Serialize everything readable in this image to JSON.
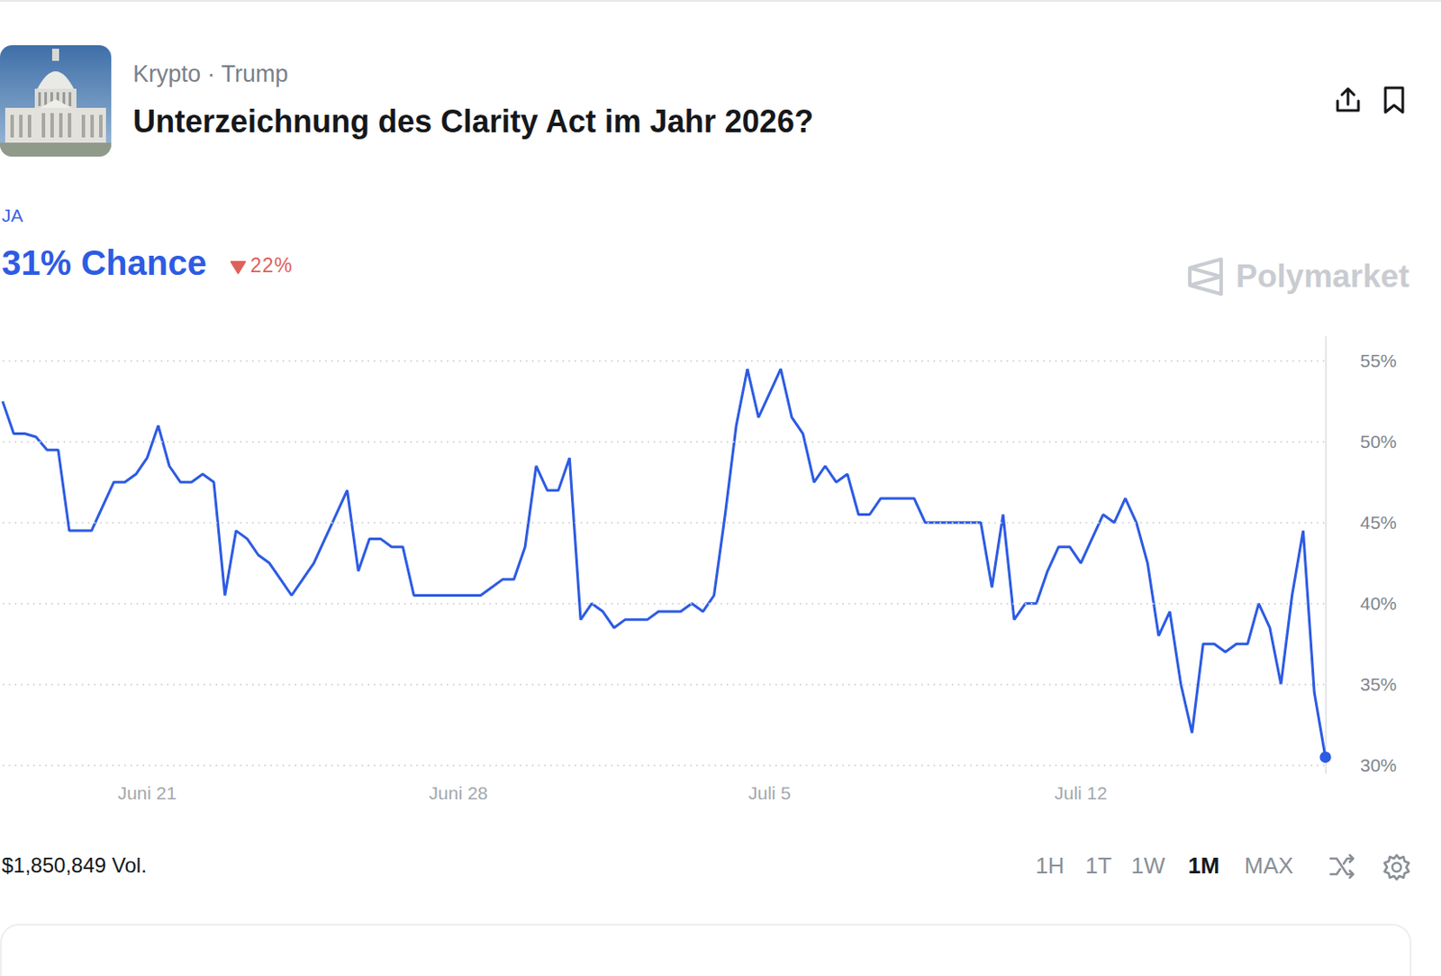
{
  "header": {
    "breadcrumb": "Krypto · Trump",
    "title": "Unterzeichnung des Clarity Act im Jahr 2026?",
    "outcome": "JA",
    "chance": "31% Chance",
    "change": "22%",
    "brand": "Polymarket"
  },
  "footer": {
    "volume": "$1,850,849 Vol.",
    "ranges": [
      "1H",
      "1T",
      "1W",
      "1M",
      "MAX"
    ],
    "selected": "1M"
  },
  "chart_data": {
    "type": "line",
    "categories": [
      null,
      null,
      null,
      null,
      null,
      null,
      null,
      null,
      null,
      null,
      null,
      null,
      null,
      "Juni 21",
      null,
      null,
      null,
      null,
      null,
      null,
      null,
      null,
      null,
      null,
      null,
      null,
      null,
      null,
      null,
      null,
      null,
      null,
      null,
      null,
      null,
      null,
      null,
      null,
      null,
      null,
      null,
      "Juni 28",
      null,
      null,
      null,
      null,
      null,
      null,
      null,
      null,
      null,
      null,
      null,
      null,
      null,
      null,
      null,
      null,
      null,
      null,
      null,
      null,
      null,
      null,
      null,
      null,
      null,
      null,
      null,
      "Juli 5",
      null,
      null,
      null,
      null,
      null,
      null,
      null,
      null,
      null,
      null,
      null,
      null,
      null,
      null,
      null,
      null,
      null,
      null,
      null,
      null,
      null,
      null,
      null,
      null,
      null,
      null,
      null,
      "Juli 12",
      null,
      null,
      null,
      null,
      null,
      null,
      null,
      null,
      null,
      null,
      null,
      null,
      null,
      null,
      null,
      null,
      null,
      null,
      null,
      null,
      null,
      null
    ],
    "values": [
      52.5,
      50.5,
      50.5,
      50.3,
      49.5,
      49.5,
      44.5,
      44.5,
      44.5,
      46,
      47.5,
      47.5,
      48,
      49,
      51,
      48.5,
      47.5,
      47.5,
      48,
      47.5,
      40.5,
      44.5,
      44,
      43,
      42.5,
      41.5,
      40.5,
      41.5,
      42.5,
      44,
      45.5,
      47,
      42,
      44,
      44,
      43.5,
      43.5,
      40.5,
      40.5,
      40.5,
      40.5,
      40.5,
      40.5,
      40.5,
      41,
      41.5,
      41.5,
      43.5,
      48.5,
      47,
      47,
      49,
      39,
      40,
      39.5,
      38.5,
      39,
      39,
      39,
      39.5,
      39.5,
      39.5,
      40,
      39.5,
      40.5,
      45.5,
      51,
      54.5,
      51.5,
      53,
      54.5,
      51.5,
      50.5,
      47.5,
      48.5,
      47.5,
      48,
      45.5,
      45.5,
      46.5,
      46.5,
      46.5,
      46.5,
      45,
      45,
      45,
      45,
      45,
      45,
      41,
      45.5,
      39,
      40,
      40,
      42,
      43.5,
      43.5,
      42.5,
      44,
      45.5,
      45,
      46.5,
      45,
      42.5,
      38,
      39.5,
      35,
      32,
      37.5,
      37.5,
      37,
      37.5,
      37.5,
      40,
      38.5,
      35,
      40.5,
      44.5,
      34.5,
      30.5
    ],
    "color": "#2d5be3",
    "ylim": [
      29.5,
      56.5
    ],
    "yticks": [
      {
        "value": 30,
        "label": "30%"
      },
      {
        "value": 35,
        "label": "35%"
      },
      {
        "value": 40,
        "label": "40%"
      },
      {
        "value": 45,
        "label": "45%"
      },
      {
        "value": 50,
        "label": "50%"
      },
      {
        "value": 55,
        "label": "55%"
      }
    ],
    "grid": true
  }
}
